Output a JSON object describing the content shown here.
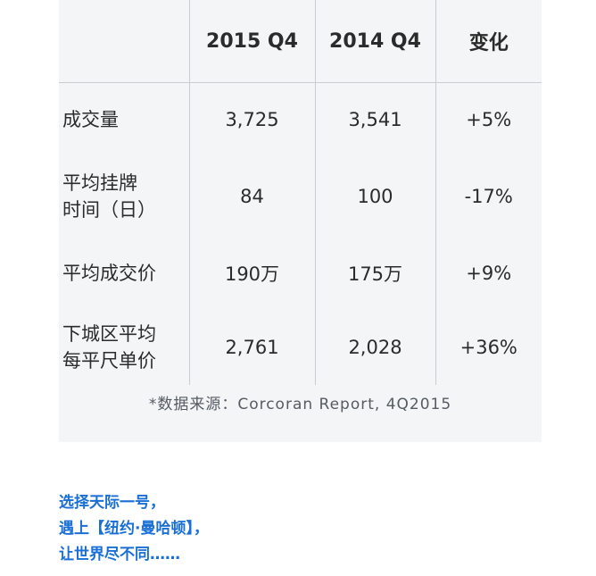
{
  "table": {
    "headers": [
      "",
      "2015 Q4",
      "2014 Q4",
      "变化"
    ],
    "rows": [
      {
        "label_lines": [
          "成交量"
        ],
        "values": [
          "3,725",
          "3,541",
          "+5%"
        ]
      },
      {
        "label_lines": [
          "平均挂牌",
          "时间（日）"
        ],
        "values": [
          "84",
          "100",
          "-17%"
        ]
      },
      {
        "label_lines": [
          "平均成交价"
        ],
        "values": [
          "190万",
          "175万",
          "+9%"
        ]
      },
      {
        "label_lines": [
          "下城区平均",
          "每平尺单价"
        ],
        "values": [
          "2,761",
          "2,028",
          "+36%"
        ]
      }
    ],
    "source": "*数据来源：Corcoran Report, 4Q2015"
  },
  "footer": {
    "line1": "选择天际一号，",
    "line2": "遇上【纽约·曼哈顿】，",
    "line3": "让世界尽不同……"
  },
  "colors": {
    "panel_bg": "#f4f5f7",
    "text": "#2b2b2b",
    "accent_blue": "#1a6fd6"
  }
}
